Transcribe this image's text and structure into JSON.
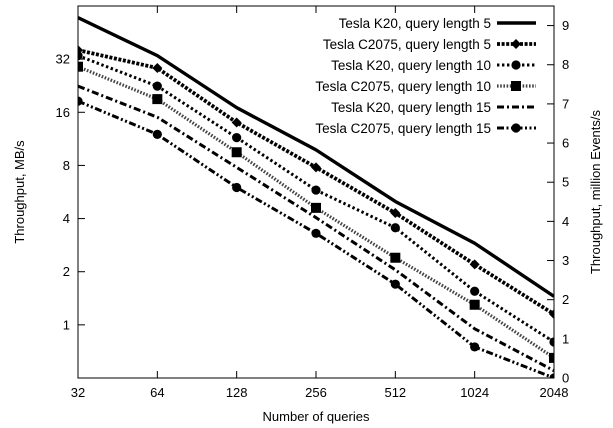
{
  "chart_data": {
    "type": "line",
    "title": "",
    "xlabel": "Number of queries",
    "ylabel": "Throughput, MB/s",
    "y2label": "Throughput, million Events/s",
    "x_scale": "log2",
    "y_scale": "log2",
    "x": [
      32,
      64,
      128,
      256,
      512,
      1024,
      2048
    ],
    "x_ticks": [
      "32",
      "64",
      "128",
      "256",
      "512",
      "1024",
      "2048"
    ],
    "y_ticks": [
      1,
      2,
      4,
      8,
      16,
      32
    ],
    "y_tick_labels": [
      "1",
      "2",
      "4",
      "8",
      "16",
      "32"
    ],
    "ylim": [
      0.5,
      64
    ],
    "y2_ticks": [
      "0",
      "1",
      "2",
      "3",
      "4",
      "5",
      "6",
      "7",
      "8",
      "9"
    ],
    "y2lim": [
      0,
      9.5
    ],
    "grid": false,
    "legend_position": "top-right",
    "series": [
      {
        "name": "Tesla K20, query length 5",
        "marker": "none",
        "dash": "solid",
        "values": [
          55,
          33.5,
          17,
          9.8,
          5,
          2.9,
          1.45
        ]
      },
      {
        "name": "Tesla C2075, query length 5",
        "marker": "diamond",
        "dash": "dense",
        "values": [
          36,
          28.5,
          14,
          7.8,
          4.3,
          2.2,
          1.15
        ]
      },
      {
        "name": "Tesla K20, query length 10",
        "marker": "circle",
        "dash": "dotted",
        "values": [
          33.5,
          22.5,
          11.5,
          5.8,
          3.55,
          1.55,
          0.8
        ]
      },
      {
        "name": "Tesla C2075, query length 10",
        "marker": "square",
        "dash": "dotted-gray",
        "values": [
          29,
          19,
          9.5,
          4.6,
          2.4,
          1.3,
          0.65
        ]
      },
      {
        "name": "Tesla K20, query length 15",
        "marker": "none",
        "dash": "dash-dot",
        "values": [
          22.5,
          15,
          7.8,
          4.05,
          2.05,
          0.95,
          0.55
        ]
      },
      {
        "name": "Tesla C2075, query length 15",
        "marker": "circle",
        "dash": "dash-dot-dot",
        "values": [
          18.5,
          12,
          6,
          3.3,
          1.7,
          0.75,
          0.5
        ]
      }
    ]
  }
}
